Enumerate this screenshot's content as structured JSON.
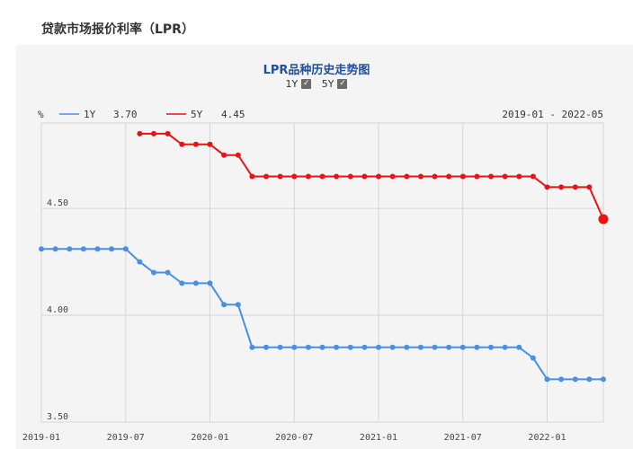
{
  "page": {
    "title": "贷款市场报价利率（LPR）"
  },
  "toggles": [
    {
      "label": "1Y",
      "checked": true,
      "check_glyph": "✓"
    },
    {
      "label": "5Y",
      "checked": true,
      "check_glyph": "✓"
    }
  ],
  "legend": {
    "unit": "%",
    "items": [
      {
        "label": "1Y",
        "value": "3.70",
        "color": "#4a90e2"
      },
      {
        "label": "5Y",
        "value": "4.45",
        "color": "#e81414"
      }
    ],
    "range_text": "2019-01 - 2022-05"
  },
  "chart_data": {
    "type": "line",
    "title": "LPR品种历史走势图",
    "ylim": [
      3.5,
      4.9
    ],
    "yticks": [
      3.5,
      4.0,
      4.5
    ],
    "ytick_labels": [
      "3.50",
      "4.00",
      "4.50"
    ],
    "xticks": [
      "2019-01",
      "2019-07",
      "2020-01",
      "2020-07",
      "2021-01",
      "2021-07",
      "2022-01"
    ],
    "grid": true,
    "x": [
      "2019-01",
      "2019-02",
      "2019-03",
      "2019-04",
      "2019-05",
      "2019-06",
      "2019-07",
      "2019-08",
      "2019-09",
      "2019-10",
      "2019-11",
      "2019-12",
      "2020-01",
      "2020-02",
      "2020-03",
      "2020-04",
      "2020-05",
      "2020-06",
      "2020-07",
      "2020-08",
      "2020-09",
      "2020-10",
      "2020-11",
      "2020-12",
      "2021-01",
      "2021-02",
      "2021-03",
      "2021-04",
      "2021-05",
      "2021-06",
      "2021-07",
      "2021-08",
      "2021-09",
      "2021-10",
      "2021-11",
      "2021-12",
      "2022-01",
      "2022-02",
      "2022-03",
      "2022-04",
      "2022-05"
    ],
    "series": [
      {
        "name": "1Y",
        "color": "#4a90e2",
        "values": [
          4.31,
          4.31,
          4.31,
          4.31,
          4.31,
          4.31,
          4.31,
          4.25,
          4.2,
          4.2,
          4.15,
          4.15,
          4.15,
          4.05,
          4.05,
          3.85,
          3.85,
          3.85,
          3.85,
          3.85,
          3.85,
          3.85,
          3.85,
          3.85,
          3.85,
          3.85,
          3.85,
          3.85,
          3.85,
          3.85,
          3.85,
          3.85,
          3.85,
          3.85,
          3.85,
          3.8,
          3.7,
          3.7,
          3.7,
          3.7,
          3.7
        ]
      },
      {
        "name": "5Y",
        "color": "#e81414",
        "values": [
          null,
          null,
          null,
          null,
          null,
          null,
          null,
          4.85,
          4.85,
          4.85,
          4.8,
          4.8,
          4.8,
          4.75,
          4.75,
          4.65,
          4.65,
          4.65,
          4.65,
          4.65,
          4.65,
          4.65,
          4.65,
          4.65,
          4.65,
          4.65,
          4.65,
          4.65,
          4.65,
          4.65,
          4.65,
          4.65,
          4.65,
          4.65,
          4.65,
          4.65,
          4.6,
          4.6,
          4.6,
          4.6,
          4.45
        ]
      }
    ]
  }
}
